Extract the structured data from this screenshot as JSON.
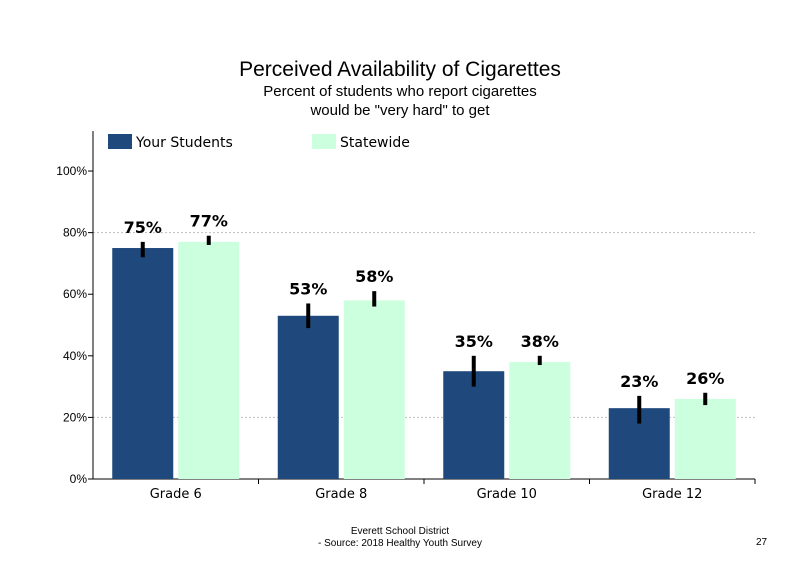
{
  "title": "Perceived Availability of Cigarettes",
  "subtitle_lines": [
    "Percent of students who report cigarettes",
    "would be \"very hard\" to get"
  ],
  "footer_lines": [
    "Everett School District",
    "- Source: 2018 Healthy  Youth Survey"
  ],
  "page_number": "27",
  "colors": {
    "your_students": "#1f497d",
    "statewide": "#ccffdd",
    "error_bar": "#000000",
    "grid": "#bfbfbf"
  },
  "chart_data": {
    "type": "bar",
    "categories": [
      "Grade 6",
      "Grade 8",
      "Grade 10",
      "Grade 12"
    ],
    "series": [
      {
        "name": "Your Students",
        "values": [
          75,
          53,
          35,
          23
        ],
        "labels": [
          "75%",
          "53%",
          "35%",
          "23%"
        ],
        "error": [
          [
            72,
            77
          ],
          [
            49,
            57
          ],
          [
            30,
            40
          ],
          [
            18,
            27
          ]
        ]
      },
      {
        "name": "Statewide",
        "values": [
          77,
          58,
          38,
          26
        ],
        "labels": [
          "77%",
          "58%",
          "38%",
          "26%"
        ],
        "error": [
          [
            76,
            79
          ],
          [
            56,
            61
          ],
          [
            37,
            40
          ],
          [
            24,
            28
          ]
        ]
      }
    ],
    "ylim": [
      0,
      100
    ],
    "yticks": [
      0,
      20,
      40,
      60,
      80,
      100
    ],
    "ytick_labels": [
      "0%",
      "20%",
      "40%",
      "60%",
      "80%",
      "100%"
    ],
    "gridlines_dashed": [
      20,
      80
    ],
    "legend_position": "top-left",
    "xlabel": "",
    "ylabel": ""
  }
}
